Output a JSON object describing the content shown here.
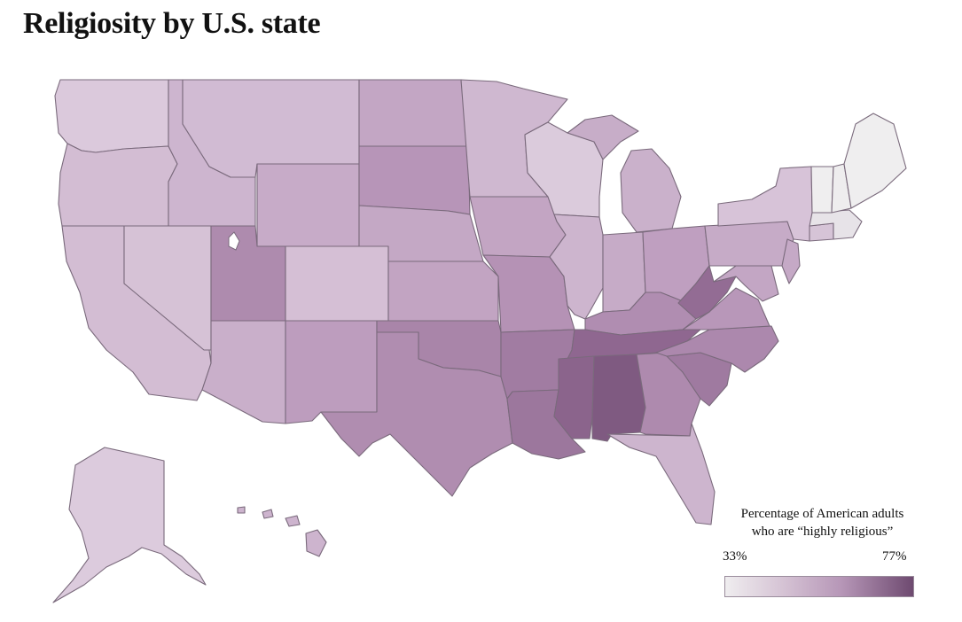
{
  "title": "Religiosity by U.S. state",
  "legend": {
    "title_line1": "Percentage of American adults",
    "title_line2": "who are “highly religious”",
    "min_label": "33%",
    "max_label": "77%",
    "color_low": "#efedef",
    "color_high": "#6e4a70"
  },
  "map": {
    "type": "choropleth",
    "region": "United States",
    "shading": {
      "lightest": [
        "Vermont",
        "New Hampshire",
        "Maine",
        "Massachusetts"
      ],
      "light": [
        "Washington",
        "Wisconsin",
        "Colorado",
        "Alaska",
        "New York",
        "Connecticut"
      ],
      "medium": [
        "Oregon",
        "California",
        "Nevada",
        "Idaho",
        "Montana",
        "Minnesota",
        "Illinois",
        "Michigan",
        "Pennsylvania",
        "Florida",
        "Hawaii",
        "Arizona"
      ],
      "darker": [
        "Utah",
        "South Dakota",
        "Missouri",
        "Kentucky",
        "Virginia",
        "Texas",
        "Oklahoma",
        "North Carolina",
        "Georgia"
      ],
      "darkest": [
        "Alabama",
        "Mississippi",
        "Tennessee",
        "Arkansas",
        "Louisiana",
        "South Carolina",
        "West Virginia"
      ]
    }
  }
}
